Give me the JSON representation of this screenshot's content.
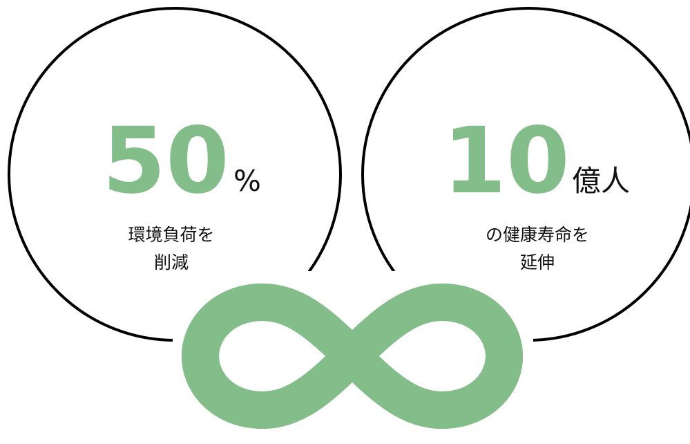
{
  "items": [
    {
      "number": "50",
      "unit": "%",
      "caption": [
        "環境負荷を",
        "削減"
      ]
    },
    {
      "number": "10",
      "unit": "億人",
      "caption": [
        "の健康寿命を",
        "延伸"
      ]
    }
  ]
}
